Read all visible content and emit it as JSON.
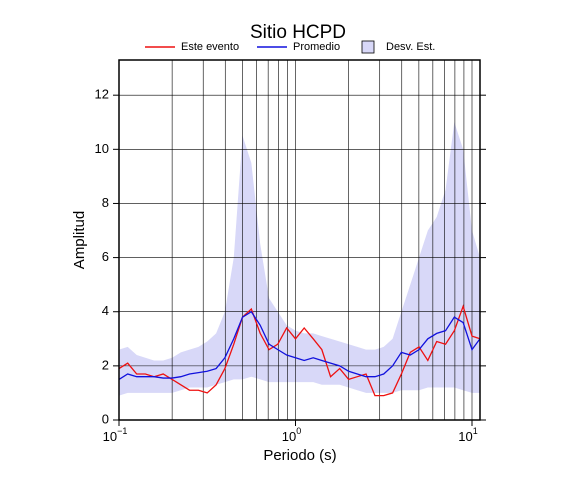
{
  "chart_data": {
    "type": "line",
    "title": "Sitio HCPD",
    "xlabel": "Periodo (s)",
    "ylabel": "Amplitud",
    "x": [
      0.1,
      0.112,
      0.126,
      0.141,
      0.158,
      0.178,
      0.2,
      0.224,
      0.251,
      0.282,
      0.316,
      0.355,
      0.398,
      0.447,
      0.501,
      0.562,
      0.631,
      0.708,
      0.794,
      0.891,
      1.0,
      1.12,
      1.26,
      1.41,
      1.58,
      1.78,
      2.0,
      2.24,
      2.51,
      2.82,
      3.16,
      3.55,
      3.98,
      4.47,
      5.01,
      5.62,
      6.31,
      7.08,
      7.94,
      8.91,
      10.0,
      11.1
    ],
    "band": {
      "name": "Desv. Est.",
      "color": "#d8d8f8",
      "upper": [
        2.6,
        2.7,
        2.4,
        2.3,
        2.2,
        2.2,
        2.3,
        2.5,
        2.6,
        2.7,
        2.9,
        3.2,
        4.0,
        6.0,
        10.5,
        9.5,
        6.5,
        4.5,
        4.0,
        3.5,
        3.3,
        3.2,
        3.2,
        3.1,
        3.0,
        2.9,
        2.8,
        2.7,
        2.6,
        2.6,
        2.7,
        3.0,
        4.0,
        5.0,
        6.0,
        7.0,
        7.5,
        8.5,
        11.0,
        10.0,
        7.0,
        6.0
      ],
      "lower": [
        0.9,
        1.0,
        1.0,
        1.0,
        1.0,
        1.0,
        1.0,
        1.1,
        1.2,
        1.2,
        1.2,
        1.3,
        1.4,
        1.5,
        1.5,
        1.6,
        1.5,
        1.4,
        1.4,
        1.4,
        1.4,
        1.4,
        1.4,
        1.3,
        1.3,
        1.3,
        1.2,
        1.1,
        1.0,
        1.0,
        1.0,
        1.0,
        1.1,
        1.1,
        1.1,
        1.2,
        1.2,
        1.2,
        1.2,
        1.1,
        1.0,
        1.0
      ]
    },
    "series": [
      {
        "name": "Este evento",
        "color": "#ee1111",
        "values": [
          1.9,
          2.1,
          1.7,
          1.7,
          1.6,
          1.7,
          1.5,
          1.3,
          1.1,
          1.1,
          1.0,
          1.3,
          1.9,
          2.8,
          3.8,
          4.1,
          3.2,
          2.6,
          2.8,
          3.4,
          3.0,
          3.4,
          3.0,
          2.6,
          1.6,
          1.9,
          1.5,
          1.6,
          1.7,
          0.9,
          0.9,
          1.0,
          1.7,
          2.5,
          2.7,
          2.2,
          2.9,
          2.8,
          3.3,
          4.2,
          3.1,
          3.0
        ]
      },
      {
        "name": "Promedio",
        "color": "#1111dd",
        "values": [
          1.5,
          1.7,
          1.6,
          1.6,
          1.6,
          1.55,
          1.55,
          1.6,
          1.7,
          1.75,
          1.8,
          1.9,
          2.3,
          3.0,
          3.8,
          4.0,
          3.5,
          2.8,
          2.6,
          2.4,
          2.3,
          2.2,
          2.3,
          2.2,
          2.1,
          2.0,
          1.8,
          1.7,
          1.6,
          1.6,
          1.7,
          2.0,
          2.5,
          2.4,
          2.6,
          3.0,
          3.2,
          3.3,
          3.8,
          3.6,
          2.6,
          3.0
        ]
      }
    ],
    "xlog": true,
    "xlim": [
      0.1,
      11.1
    ],
    "ylim": [
      0,
      13.3
    ],
    "xticks": [
      {
        "value": 0.1,
        "label": "10",
        "exponent": "−1"
      },
      {
        "value": 1,
        "label": "10",
        "exponent": "0"
      },
      {
        "value": 10,
        "label": "10",
        "exponent": "1"
      }
    ],
    "xminor": [
      0.2,
      0.3,
      0.4,
      0.5,
      0.6,
      0.7,
      0.8,
      0.9,
      2,
      3,
      4,
      5,
      6,
      7,
      8,
      9
    ],
    "yticks": [
      0,
      2,
      4,
      6,
      8,
      10,
      12
    ],
    "grid": true
  }
}
